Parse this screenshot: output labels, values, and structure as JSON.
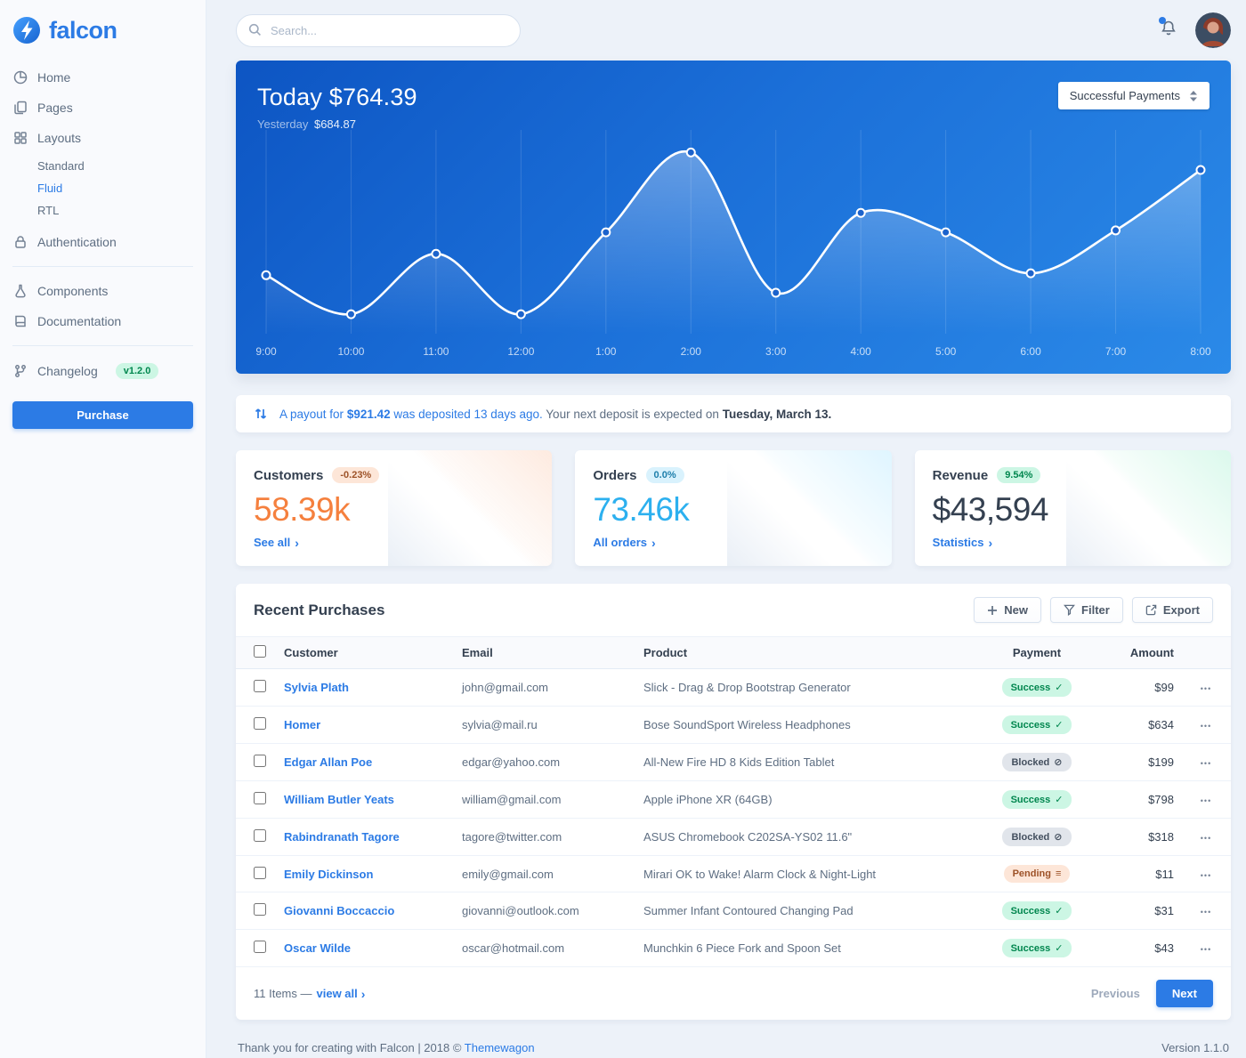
{
  "colors": {
    "primary": "#2c7be5",
    "success": "#00d27a",
    "warning": "#f5803e",
    "info": "#27bcfd",
    "background": "#edf2f9",
    "hero_gradient_start": "#0d55c3",
    "hero_gradient_end": "#2b8ae8"
  },
  "icons": {
    "chevron_right": "›",
    "ellipsis": "•••",
    "badge_success": "✓",
    "badge_blocked": "⊘",
    "badge_pending": "≡"
  },
  "brand": {
    "name": "falcon"
  },
  "topbar": {
    "search_placeholder": "Search..."
  },
  "sidebar": {
    "items": [
      {
        "label": "Home"
      },
      {
        "label": "Pages"
      },
      {
        "label": "Layouts",
        "children": [
          "Standard",
          "Fluid",
          "RTL"
        ],
        "active_child": "Fluid"
      },
      {
        "label": "Authentication"
      },
      {
        "label": "Components"
      },
      {
        "label": "Documentation"
      },
      {
        "label": "Changelog",
        "badge": "v1.2.0"
      }
    ],
    "purchase_label": "Purchase"
  },
  "chart_data": {
    "type": "line",
    "title": "Today $764.39",
    "subtitle_label": "Yesterday",
    "subtitle_value": "$684.87",
    "series_selector": "Successful Payments",
    "x": [
      "9:00",
      "10:00",
      "11:00",
      "12:00",
      "1:00",
      "2:00",
      "3:00",
      "4:00",
      "5:00",
      "6:00",
      "7:00",
      "8:00"
    ],
    "values": [
      30,
      10,
      41,
      10,
      52,
      93,
      21,
      62,
      52,
      31,
      53,
      84
    ],
    "ylim": [
      0,
      100
    ],
    "grid": true,
    "line_color": "#ffffff",
    "legend_position": "none"
  },
  "payout": {
    "part1": "A payout for",
    "amount": "$921.42",
    "part2": "was deposited 13 days ago.",
    "part3": "Your next deposit is expected on",
    "date": "Tuesday, March 13."
  },
  "stats": [
    {
      "title": "Customers",
      "badge": "-0.23%",
      "value": "58.39k",
      "link": "See all"
    },
    {
      "title": "Orders",
      "badge": "0.0%",
      "value": "73.46k",
      "link": "All orders"
    },
    {
      "title": "Revenue",
      "badge": "9.54%",
      "value": "$43,594",
      "link": "Statistics"
    }
  ],
  "table": {
    "title": "Recent Purchases",
    "actions": {
      "new": "New",
      "filter": "Filter",
      "export": "Export"
    },
    "headers": {
      "customer": "Customer",
      "email": "Email",
      "product": "Product",
      "payment": "Payment",
      "amount": "Amount"
    },
    "rows": [
      {
        "customer": "Sylvia Plath",
        "email": "john@gmail.com",
        "product": "Slick - Drag & Drop Bootstrap Generator",
        "payment": "Success",
        "status": "success",
        "amount": "$99"
      },
      {
        "customer": "Homer",
        "email": "sylvia@mail.ru",
        "product": "Bose SoundSport Wireless Headphones",
        "payment": "Success",
        "status": "success",
        "amount": "$634"
      },
      {
        "customer": "Edgar Allan Poe",
        "email": "edgar@yahoo.com",
        "product": "All-New Fire HD 8 Kids Edition Tablet",
        "payment": "Blocked",
        "status": "blocked",
        "amount": "$199"
      },
      {
        "customer": "William Butler Yeats",
        "email": "william@gmail.com",
        "product": "Apple iPhone XR (64GB)",
        "payment": "Success",
        "status": "success",
        "amount": "$798"
      },
      {
        "customer": "Rabindranath Tagore",
        "email": "tagore@twitter.com",
        "product": "ASUS Chromebook C202SA-YS02 11.6\"",
        "payment": "Blocked",
        "status": "blocked",
        "amount": "$318"
      },
      {
        "customer": "Emily Dickinson",
        "email": "emily@gmail.com",
        "product": "Mirari OK to Wake! Alarm Clock & Night-Light",
        "payment": "Pending",
        "status": "pending",
        "amount": "$11"
      },
      {
        "customer": "Giovanni Boccaccio",
        "email": "giovanni@outlook.com",
        "product": "Summer Infant Contoured Changing Pad",
        "payment": "Success",
        "status": "success",
        "amount": "$31"
      },
      {
        "customer": "Oscar Wilde",
        "email": "oscar@hotmail.com",
        "product": "Munchkin 6 Piece Fork and Spoon Set",
        "payment": "Success",
        "status": "success",
        "amount": "$43"
      }
    ],
    "footer": {
      "items_text": "11 Items —",
      "view_all": "view all",
      "previous": "Previous",
      "next": "Next"
    }
  },
  "footer": {
    "left_text": "Thank you for creating with Falcon | 2018 © ",
    "brand_link": "Themewagon",
    "version": "Version 1.1.0"
  }
}
